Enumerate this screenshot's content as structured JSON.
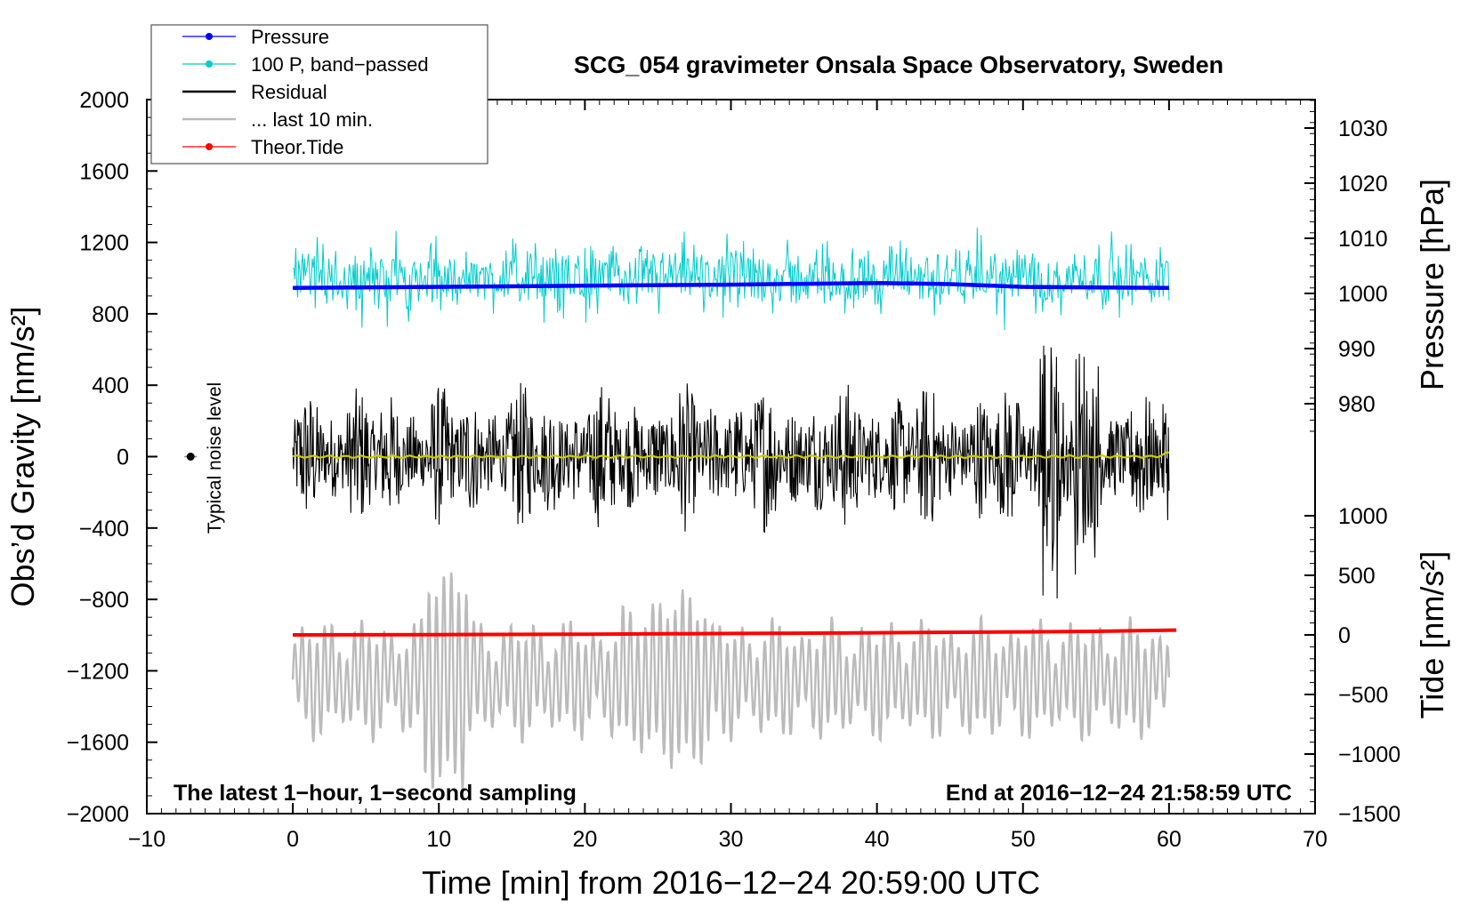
{
  "chart_data": {
    "type": "line",
    "title": "SCG_054 gravimeter Onsala Space Observatory, Sweden",
    "xlabel": "Time [min] from 2016−12−24 20:59:00 UTC",
    "ylabel_left": "Obs’d Gravity [nm/s²]",
    "ylabel_right_top": "Pressure [hPa]",
    "ylabel_right_bottom": "Tide [nm/s²]",
    "xlim": [
      -10,
      70
    ],
    "ylim_left": [
      -2000,
      2000
    ],
    "pressure_axis_range": [
      970,
      1035
    ],
    "tide_axis_range": [
      -1500,
      1000
    ],
    "x_ticks": [
      -10,
      0,
      10,
      20,
      30,
      40,
      50,
      60,
      70
    ],
    "x_tick_labels": [
      "−10",
      "0",
      "10",
      "20",
      "30",
      "40",
      "50",
      "60",
      "70"
    ],
    "y_left_ticks": [
      2000,
      1600,
      1200,
      800,
      400,
      0,
      -400,
      -800,
      -1200,
      -1600,
      -2000
    ],
    "y_left_tick_labels": [
      "2000",
      "1600",
      "1200",
      "800",
      "400",
      "0",
      "−400",
      "−800",
      "−1200",
      "−1600",
      "−2000"
    ],
    "pressure_ticks": [
      1030,
      1020,
      1010,
      1000,
      990,
      980
    ],
    "pressure_tick_labels": [
      "1030",
      "1020",
      "1010",
      "1000",
      "990",
      "980"
    ],
    "tide_ticks": [
      1000,
      500,
      0,
      -500,
      -1000,
      -1500
    ],
    "tide_tick_labels": [
      "1000",
      "500",
      "0",
      "−500",
      "−1000",
      "−1500"
    ],
    "legend": [
      {
        "label": "Pressure",
        "color": "#0000ff",
        "style": "line-marker"
      },
      {
        "label": "100 P, band−passed",
        "color": "#00cccc",
        "style": "line-marker"
      },
      {
        "label": "Residual",
        "color": "#000000",
        "style": "line"
      },
      {
        "label": "... last 10 min.",
        "color": "#bbbbbb",
        "style": "line"
      },
      {
        "label": "Theor.Tide",
        "color": "#ff0000",
        "style": "line-marker"
      }
    ],
    "annotations": {
      "noise_label": "Typical noise level",
      "bottom_left": "The latest 1−hour, 1−second sampling",
      "bottom_right": "End at 2016−12−24 21:58:59 UTC"
    },
    "noise_marker": {
      "x": -7,
      "y": 0,
      "error": 15
    },
    "series": [
      {
        "name": "Pressure",
        "axis": "pressure",
        "color": "#0000ff",
        "x": [
          0,
          10,
          20,
          30,
          40,
          45,
          50,
          60
        ],
        "values": [
          1001.0,
          1001.2,
          1001.4,
          1001.6,
          1001.9,
          1001.7,
          1001.2,
          1001.0
        ]
      },
      {
        "name": "100 P, band−passed",
        "axis": "left",
        "color": "#00cccc",
        "center": 1000,
        "amplitude_typical": 150,
        "amplitude_max": 450
      },
      {
        "name": "Residual",
        "axis": "left",
        "color": "#000000",
        "center": 0,
        "amplitude_typical": 300,
        "amplitude_max": 950
      },
      {
        "name": "Residual smoothed",
        "axis": "left",
        "color": "#cccc00",
        "x": [
          0,
          30,
          59,
          60
        ],
        "values": [
          0,
          0,
          5,
          20
        ]
      },
      {
        "name": "... last 10 min.",
        "axis": "left",
        "color": "#bbbbbb",
        "center": -1250,
        "amplitude_typical": 350,
        "amplitude_max": 750
      },
      {
        "name": "Theor.Tide",
        "axis": "tide",
        "color": "#ff0000",
        "x": [
          0,
          10,
          20,
          30,
          40,
          50,
          55,
          60.5
        ],
        "values": [
          0,
          2,
          6,
          12,
          18,
          25,
          30,
          40
        ]
      }
    ]
  }
}
